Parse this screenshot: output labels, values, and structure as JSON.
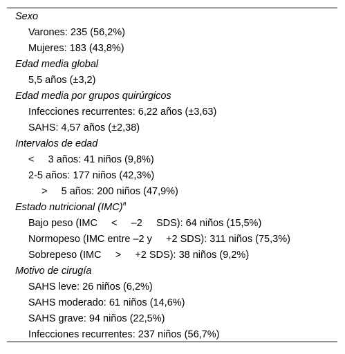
{
  "sections": [
    {
      "heading": "Sexo",
      "items": [
        "Varones: 235 (56,2%)",
        "Mujeres: 183 (43,8%)"
      ]
    },
    {
      "heading": "Edad media global",
      "items": [
        "5,5 años (±3,2)"
      ]
    },
    {
      "heading": "Edad media por grupos quirúrgicos",
      "items": [
        "Infecciones recurrentes: 6,22 años (±3,63)",
        "SAHS: 4,57 años (±2,38)"
      ]
    },
    {
      "heading": "Intervalos de edad",
      "items": [
        "<     3 años: 41 niños (9,8%)",
        "2-5 años: 177 niños (42,3%)",
        ">     5 años: 200 niños (47,9%)"
      ]
    },
    {
      "heading": "Estado nutricional (IMC)",
      "heading_sup": "a",
      "items": [
        "Bajo peso (IMC     <     –2     SDS): 64 niños (15,5%)",
        "Normopeso (IMC entre –2 y     +2 SDS): 311 niños (75,3%)",
        "Sobrepeso (IMC     >     +2 SDS): 38 niños (9,2%)"
      ]
    },
    {
      "heading": "Motivo de cirugía",
      "items": [
        "SAHS leve: 26 niños (6,2%)",
        "SAHS moderado: 61 niños (14,6%)",
        "SAHS grave: 94 niños (22,5%)",
        "Infecciones recurrentes: 237 niños (56,7%)"
      ]
    }
  ]
}
